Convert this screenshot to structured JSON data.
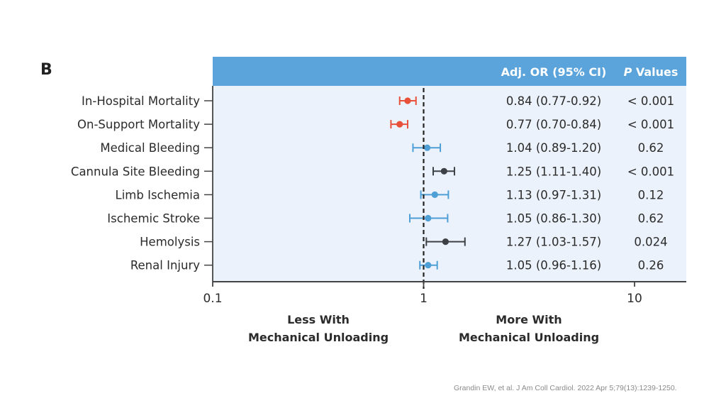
{
  "panel_letter": "B",
  "citation": "Grandin EW, et al. J Am Coll Cardiol. 2022 Apr 5;79(13):1239-1250.",
  "colors": {
    "header_bg": "#5aa3db",
    "panel_bg": "#ecf2fb",
    "decrease": "#e8503a",
    "neutral": "#4e9fd6",
    "increase": "#3d4145",
    "reference_line": "#222222",
    "axis": "#444444"
  },
  "chart_data": {
    "type": "forest",
    "xscale": "log",
    "xlim": [
      0.1,
      18
    ],
    "reference_value": 1,
    "xticks": [
      0.1,
      1,
      10
    ],
    "xtick_labels": [
      "0.1",
      "1",
      "10"
    ],
    "columns": [
      "Adj. OR (95% CI)",
      "P Values"
    ],
    "direction_labels": {
      "left": [
        "Less With",
        "Mechanical Unloading"
      ],
      "right": [
        "More With",
        "Mechanical Unloading"
      ]
    },
    "rows": [
      {
        "label": "In-Hospital Mortality",
        "or": 0.84,
        "lo": 0.77,
        "hi": 0.92,
        "or_text": "0.84 (0.77-0.92)",
        "p": "< 0.001",
        "group": "decrease"
      },
      {
        "label": "On-Support Mortality",
        "or": 0.77,
        "lo": 0.7,
        "hi": 0.84,
        "or_text": "0.77 (0.70-0.84)",
        "p": "< 0.001",
        "group": "decrease"
      },
      {
        "label": "Medical Bleeding",
        "or": 1.04,
        "lo": 0.89,
        "hi": 1.2,
        "or_text": "1.04 (0.89-1.20)",
        "p": "0.62",
        "group": "neutral"
      },
      {
        "label": "Cannula Site Bleeding",
        "or": 1.25,
        "lo": 1.11,
        "hi": 1.4,
        "or_text": "1.25 (1.11-1.40)",
        "p": "< 0.001",
        "group": "increase"
      },
      {
        "label": "Limb Ischemia",
        "or": 1.13,
        "lo": 0.97,
        "hi": 1.31,
        "or_text": "1.13 (0.97-1.31)",
        "p": "0.12",
        "group": "neutral"
      },
      {
        "label": "Ischemic Stroke",
        "or": 1.05,
        "lo": 0.86,
        "hi": 1.3,
        "or_text": "1.05 (0.86-1.30)",
        "p": "0.62",
        "group": "neutral"
      },
      {
        "label": "Hemolysis",
        "or": 1.27,
        "lo": 1.03,
        "hi": 1.57,
        "or_text": "1.27 (1.03-1.57)",
        "p": "0.024",
        "group": "increase"
      },
      {
        "label": "Renal Injury",
        "or": 1.05,
        "lo": 0.96,
        "hi": 1.16,
        "or_text": "1.05 (0.96-1.16)",
        "p": "0.26",
        "group": "neutral"
      }
    ]
  }
}
